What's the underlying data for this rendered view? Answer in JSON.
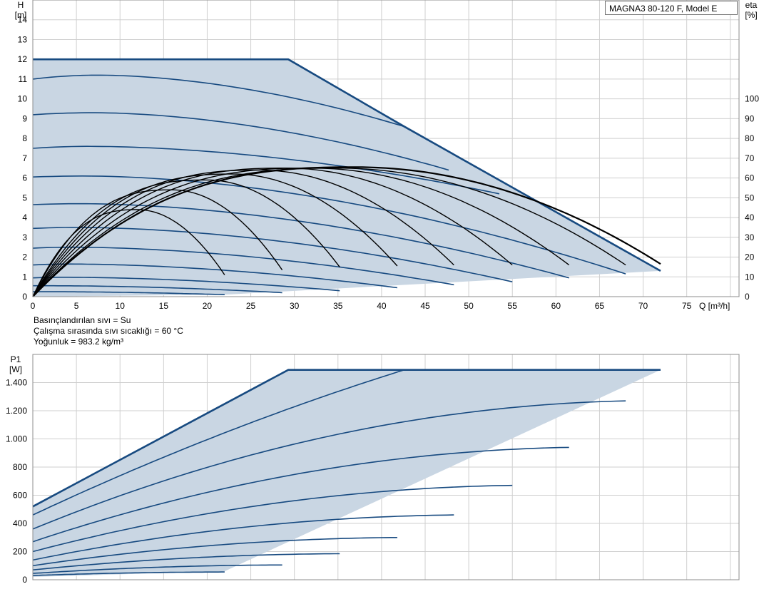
{
  "model_label": "MAGNA3 80-120 F, Model E",
  "fluid_info": [
    "Basınçlandırılan sıvı = Su",
    "Çalışma sırasında sıvı sıcaklığı = 60 °C",
    "Yoğunluk = 983.2 kg/m³"
  ],
  "colors": {
    "area": "#c9d6e3",
    "curve": "#174a80",
    "eta": "#000000",
    "grid": "#cfcfcf"
  },
  "chart_data": [
    {
      "type": "line",
      "name": "head",
      "ylabel_lines": [
        "H",
        "[m]"
      ],
      "y2label_lines": [
        "eta",
        "[%]"
      ],
      "xlabel": "Q [m³/h]",
      "xlim": [
        0,
        81
      ],
      "ylim": [
        0,
        15
      ],
      "x_ticks": [
        0,
        5,
        10,
        15,
        20,
        25,
        30,
        35,
        40,
        45,
        50,
        55,
        60,
        65,
        70,
        75
      ],
      "y_ticks": [
        0,
        1,
        2,
        3,
        4,
        5,
        6,
        7,
        8,
        9,
        10,
        11,
        12,
        13,
        14
      ],
      "y2_ticks": [
        0,
        10,
        20,
        30,
        40,
        50,
        60,
        70,
        80,
        90,
        100
      ],
      "y2lim": [
        0,
        100
      ],
      "grid": true,
      "envelope": [
        [
          0,
          12
        ],
        [
          29.3,
          12
        ],
        [
          72,
          1.3
        ],
        [
          22,
          0.1
        ],
        [
          0,
          0
        ]
      ],
      "max_curve": [
        [
          0,
          12
        ],
        [
          29.3,
          12
        ],
        [
          42.6,
          8.6
        ],
        [
          72,
          1.3
        ]
      ],
      "speed_curves": [
        {
          "h0": 11.0,
          "qpk": 7.5,
          "hpk": 11.2,
          "qend": 42.6,
          "hend": 8.6
        },
        {
          "h0": 9.2,
          "qpk": 7.0,
          "hpk": 9.3,
          "qend": 47.7,
          "hend": 6.4
        },
        {
          "h0": 7.5,
          "qpk": 6.5,
          "hpk": 7.6,
          "qend": 53.5,
          "hend": 5.2
        },
        {
          "h0": 6.05,
          "qpk": 6.0,
          "hpk": 6.1,
          "qend": 68.0,
          "hend": 1.15
        },
        {
          "h0": 4.65,
          "qpk": 5.5,
          "hpk": 4.7,
          "qend": 61.5,
          "hend": 0.95
        },
        {
          "h0": 3.45,
          "qpk": 5.0,
          "hpk": 3.5,
          "qend": 55.0,
          "hend": 0.75
        },
        {
          "h0": 2.45,
          "qpk": 4.5,
          "hpk": 2.5,
          "qend": 48.3,
          "hend": 0.6
        },
        {
          "h0": 1.6,
          "qpk": 4.0,
          "hpk": 1.65,
          "qend": 41.8,
          "hend": 0.45
        },
        {
          "h0": 0.95,
          "qpk": 3.5,
          "hpk": 0.98,
          "qend": 35.2,
          "hend": 0.3
        },
        {
          "h0": 0.55,
          "qpk": 2.5,
          "hpk": 0.55,
          "qend": 28.6,
          "hend": 0.2
        },
        {
          "h0": 0.25,
          "qpk": 1.5,
          "hpk": 0.25,
          "qend": 22.0,
          "hend": 0.1
        }
      ],
      "eta_curves": [
        {
          "qmax": 22.0,
          "peak_q": 12.0,
          "peak_eta": 44.0,
          "end_eta": 11.0
        },
        {
          "qmax": 28.6,
          "peak_q": 16.0,
          "peak_eta": 54.0,
          "end_eta": 13.5
        },
        {
          "qmax": 35.2,
          "peak_q": 20.0,
          "peak_eta": 59.0,
          "end_eta": 15.0
        },
        {
          "qmax": 41.8,
          "peak_q": 23.0,
          "peak_eta": 62.0,
          "end_eta": 15.5
        },
        {
          "qmax": 48.3,
          "peak_q": 26.0,
          "peak_eta": 64.0,
          "end_eta": 16.0
        },
        {
          "qmax": 55.0,
          "peak_q": 29.0,
          "peak_eta": 65.0,
          "end_eta": 16.0
        },
        {
          "qmax": 61.5,
          "peak_q": 32.0,
          "peak_eta": 65.0,
          "end_eta": 16.0
        },
        {
          "qmax": 68.0,
          "peak_q": 35.0,
          "peak_eta": 65.0,
          "end_eta": 16.0
        },
        {
          "qmax": 72.0,
          "peak_q": 37.0,
          "peak_eta": 65.5,
          "end_eta": 16.5,
          "max": true
        }
      ]
    },
    {
      "type": "line",
      "name": "power",
      "ylabel_lines": [
        "P1",
        "[W]"
      ],
      "xlim": [
        0,
        81
      ],
      "ylim": [
        0,
        1600
      ],
      "y_ticks": [
        0,
        200,
        400,
        600,
        800,
        1000,
        1200,
        1400
      ],
      "y_tick_labels": [
        "0",
        "200",
        "400",
        "600",
        "800",
        "1.000",
        "1.200",
        "1.400"
      ],
      "grid": true,
      "envelope": [
        [
          0,
          520
        ],
        [
          29.3,
          1490
        ],
        [
          72,
          1490
        ],
        [
          22,
          60
        ],
        [
          0,
          20
        ]
      ],
      "max_curve": [
        [
          0,
          520
        ],
        [
          29.3,
          1490
        ],
        [
          72,
          1490
        ]
      ],
      "speed_curves": [
        {
          "p0": 460,
          "qend": 42.6,
          "pend": 1490,
          "shape": 0.2
        },
        {
          "p0": 360,
          "qend": 68.0,
          "pend": 1270,
          "shape": 0.9
        },
        {
          "p0": 270,
          "qend": 61.5,
          "pend": 940,
          "shape": 0.9
        },
        {
          "p0": 200,
          "qend": 55.0,
          "pend": 670,
          "shape": 0.9
        },
        {
          "p0": 140,
          "qend": 48.3,
          "pend": 460,
          "shape": 0.9
        },
        {
          "p0": 100,
          "qend": 41.8,
          "pend": 300,
          "shape": 0.9
        },
        {
          "p0": 70,
          "qend": 35.2,
          "pend": 185,
          "shape": 0.9
        },
        {
          "p0": 45,
          "qend": 28.6,
          "pend": 105,
          "shape": 0.9
        },
        {
          "p0": 30,
          "qend": 22.0,
          "pend": 55,
          "shape": 0.9
        }
      ]
    }
  ]
}
